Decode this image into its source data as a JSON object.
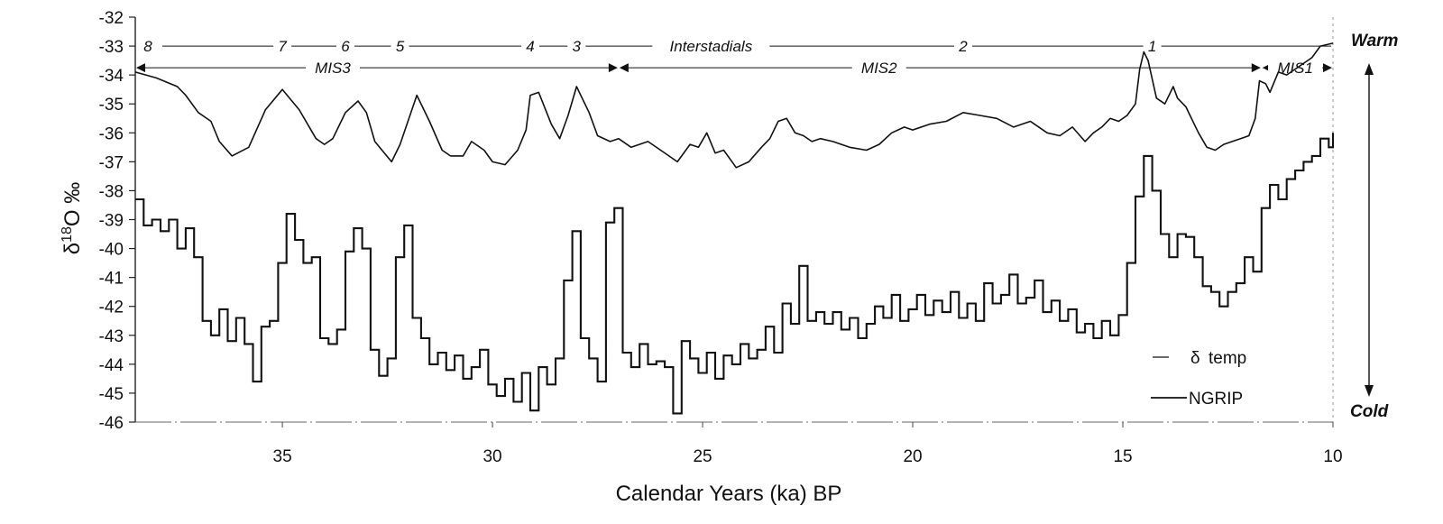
{
  "chart_data": {
    "type": "line",
    "title": "",
    "xlabel": "Calendar Years (ka) BP",
    "ylabel_main": "δ",
    "ylabel_sup": "18",
    "ylabel_tail": "O ‰",
    "xlim": [
      38.5,
      10
    ],
    "ylim": [
      -46,
      -32
    ],
    "x_reversed": true,
    "x_ticks": [
      35,
      30,
      25,
      20,
      15,
      10
    ],
    "x_tick_labels": [
      "35",
      "30",
      "25",
      "20",
      "15",
      "10"
    ],
    "y_ticks": [
      -32,
      -33,
      -34,
      -35,
      -36,
      -37,
      -38,
      -39,
      -40,
      -41,
      -42,
      -43,
      -44,
      -45,
      -46
    ],
    "y_tick_labels": [
      "-32",
      "-33",
      "-34",
      "-35",
      "-36",
      "-37",
      "-38",
      "-39",
      "-40",
      "-41",
      "-42",
      "-43",
      "-44",
      "-45",
      "-46"
    ],
    "grid": false,
    "legend_position": "bottom-right",
    "legend": [
      {
        "symbol": "δ",
        "label": "temp"
      },
      {
        "symbol": "",
        "label": "NGRIP"
      }
    ],
    "side_labels": {
      "top": "Warm",
      "bottom": "Cold"
    },
    "interstadial_labels": [
      {
        "text": "8",
        "x": 38.2
      },
      {
        "text": "7",
        "x": 35.0
      },
      {
        "text": "6",
        "x": 33.5
      },
      {
        "text": "5",
        "x": 32.2
      },
      {
        "text": "4",
        "x": 29.1
      },
      {
        "text": "3",
        "x": 28.0
      },
      {
        "text": "Interstadials",
        "x": 24.8
      },
      {
        "text": "2",
        "x": 18.8
      },
      {
        "text": "1",
        "x": 14.3
      }
    ],
    "interstadial_y": -33,
    "mis_periods": [
      {
        "label": "MIS3",
        "start": 38.5,
        "end": 27.0,
        "label_x": 33.8
      },
      {
        "label": "MIS2",
        "start": 27.0,
        "end": 11.7,
        "label_x": 20.8
      },
      {
        "label": "MIS1",
        "start": 11.7,
        "end": 10.0,
        "label_x": 10.9
      }
    ],
    "mis_y": -33.75,
    "series": [
      {
        "name": "δ temp",
        "x": [
          38.5,
          38.0,
          37.5,
          37.3,
          37.0,
          36.7,
          36.5,
          36.2,
          35.8,
          35.4,
          35.0,
          34.6,
          34.2,
          34.0,
          33.8,
          33.5,
          33.2,
          33.0,
          32.8,
          32.4,
          32.2,
          31.8,
          31.5,
          31.2,
          31.0,
          30.7,
          30.5,
          30.2,
          30.0,
          29.7,
          29.4,
          29.2,
          29.1,
          28.9,
          28.6,
          28.4,
          28.2,
          28.0,
          27.7,
          27.5,
          27.2,
          27.0,
          26.7,
          26.3,
          26.0,
          25.6,
          25.3,
          25.1,
          24.9,
          24.7,
          24.5,
          24.2,
          23.9,
          23.6,
          23.4,
          23.2,
          23.0,
          22.8,
          22.6,
          22.4,
          22.2,
          21.9,
          21.5,
          21.1,
          20.8,
          20.5,
          20.2,
          20.0,
          19.6,
          19.2,
          18.8,
          18.4,
          18.0,
          17.6,
          17.2,
          16.8,
          16.5,
          16.2,
          15.9,
          15.7,
          15.5,
          15.3,
          15.1,
          14.9,
          14.7,
          14.6,
          14.5,
          14.4,
          14.2,
          14.0,
          13.8,
          13.7,
          13.5,
          13.3,
          13.2,
          13.0,
          12.8,
          12.6,
          12.4,
          12.2,
          12.0,
          11.85,
          11.75,
          11.6,
          11.5,
          11.3,
          11.1,
          10.8,
          10.5,
          10.3,
          10.0
        ],
        "values": [
          -33.9,
          -34.1,
          -34.4,
          -34.7,
          -35.3,
          -35.6,
          -36.3,
          -36.8,
          -36.5,
          -35.2,
          -34.5,
          -35.2,
          -36.2,
          -36.4,
          -36.2,
          -35.3,
          -34.9,
          -35.3,
          -36.3,
          -37.0,
          -36.4,
          -34.7,
          -35.6,
          -36.6,
          -36.8,
          -36.8,
          -36.3,
          -36.6,
          -37.0,
          -37.1,
          -36.6,
          -35.9,
          -34.7,
          -34.6,
          -35.7,
          -36.2,
          -35.4,
          -34.4,
          -35.3,
          -36.1,
          -36.3,
          -36.2,
          -36.5,
          -36.3,
          -36.6,
          -37.0,
          -36.4,
          -36.5,
          -36.0,
          -36.7,
          -36.6,
          -37.2,
          -37.0,
          -36.5,
          -36.2,
          -35.6,
          -35.5,
          -36.0,
          -36.1,
          -36.3,
          -36.2,
          -36.3,
          -36.5,
          -36.6,
          -36.4,
          -36.0,
          -35.8,
          -35.9,
          -35.7,
          -35.6,
          -35.3,
          -35.4,
          -35.5,
          -35.8,
          -35.6,
          -36.0,
          -36.1,
          -35.8,
          -36.3,
          -36.0,
          -35.8,
          -35.5,
          -35.6,
          -35.4,
          -35.0,
          -33.8,
          -33.2,
          -33.5,
          -34.8,
          -35.0,
          -34.4,
          -34.8,
          -35.1,
          -35.7,
          -36.0,
          -36.5,
          -36.6,
          -36.4,
          -36.3,
          -36.2,
          -36.1,
          -35.5,
          -34.2,
          -34.3,
          -34.6,
          -33.9,
          -34.0,
          -33.7,
          -33.4,
          -33.0,
          -32.9
        ]
      },
      {
        "name": "NGRIP",
        "x": [
          38.5,
          38.3,
          38.1,
          37.9,
          37.7,
          37.5,
          37.3,
          37.1,
          36.9,
          36.7,
          36.5,
          36.3,
          36.1,
          35.9,
          35.7,
          35.5,
          35.3,
          35.1,
          34.9,
          34.7,
          34.5,
          34.3,
          34.1,
          33.9,
          33.7,
          33.5,
          33.3,
          33.1,
          32.9,
          32.7,
          32.5,
          32.3,
          32.1,
          31.9,
          31.7,
          31.5,
          31.3,
          31.1,
          30.9,
          30.7,
          30.5,
          30.3,
          30.1,
          29.9,
          29.7,
          29.5,
          29.3,
          29.1,
          28.9,
          28.7,
          28.5,
          28.3,
          28.1,
          27.9,
          27.7,
          27.5,
          27.3,
          27.1,
          26.9,
          26.7,
          26.5,
          26.3,
          26.1,
          25.9,
          25.7,
          25.5,
          25.3,
          25.1,
          24.9,
          24.7,
          24.5,
          24.3,
          24.1,
          23.9,
          23.7,
          23.5,
          23.3,
          23.1,
          22.9,
          22.7,
          22.5,
          22.3,
          22.1,
          21.9,
          21.7,
          21.5,
          21.3,
          21.1,
          20.9,
          20.7,
          20.5,
          20.3,
          20.1,
          19.9,
          19.7,
          19.5,
          19.3,
          19.1,
          18.9,
          18.7,
          18.5,
          18.3,
          18.1,
          17.9,
          17.7,
          17.5,
          17.3,
          17.1,
          16.9,
          16.7,
          16.5,
          16.3,
          16.1,
          15.9,
          15.7,
          15.5,
          15.3,
          15.1,
          14.9,
          14.7,
          14.5,
          14.3,
          14.1,
          13.9,
          13.7,
          13.5,
          13.3,
          13.1,
          12.9,
          12.7,
          12.5,
          12.3,
          12.1,
          11.9,
          11.7,
          11.5,
          11.3,
          11.1,
          10.9,
          10.7,
          10.5,
          10.3,
          10.1,
          10.0
        ],
        "values": [
          -38.3,
          -39.2,
          -39.0,
          -39.4,
          -39.0,
          -40.0,
          -39.3,
          -40.3,
          -42.5,
          -43.0,
          -42.1,
          -43.2,
          -42.4,
          -43.3,
          -44.6,
          -42.7,
          -42.5,
          -40.5,
          -38.8,
          -39.7,
          -40.5,
          -40.3,
          -43.1,
          -43.3,
          -42.8,
          -40.1,
          -39.3,
          -40.0,
          -43.5,
          -44.4,
          -43.8,
          -40.3,
          -39.2,
          -42.4,
          -43.1,
          -44.0,
          -43.6,
          -44.2,
          -43.7,
          -44.5,
          -44.1,
          -43.5,
          -44.7,
          -45.1,
          -44.5,
          -45.3,
          -44.3,
          -45.6,
          -44.1,
          -44.7,
          -43.8,
          -41.1,
          -39.4,
          -43.1,
          -43.8,
          -44.6,
          -39.1,
          -38.6,
          -43.6,
          -44.1,
          -43.3,
          -44.0,
          -43.9,
          -44.1,
          -45.7,
          -43.2,
          -43.8,
          -44.3,
          -43.6,
          -44.5,
          -43.7,
          -44.0,
          -43.3,
          -43.8,
          -43.5,
          -42.7,
          -43.6,
          -41.9,
          -42.6,
          -40.6,
          -42.5,
          -42.2,
          -42.6,
          -42.2,
          -42.8,
          -42.4,
          -43.1,
          -42.6,
          -42.0,
          -42.4,
          -41.6,
          -42.5,
          -42.1,
          -41.6,
          -42.3,
          -41.8,
          -42.2,
          -41.5,
          -42.4,
          -41.9,
          -42.5,
          -41.2,
          -41.9,
          -41.6,
          -40.9,
          -41.9,
          -41.7,
          -41.1,
          -42.2,
          -41.8,
          -42.5,
          -42.1,
          -42.9,
          -42.6,
          -43.1,
          -42.5,
          -43.0,
          -42.3,
          -40.5,
          -38.2,
          -36.8,
          -38.0,
          -39.5,
          -40.3,
          -39.5,
          -39.6,
          -40.3,
          -41.3,
          -41.5,
          -42.0,
          -41.5,
          -41.2,
          -40.3,
          -40.8,
          -38.6,
          -37.8,
          -38.3,
          -37.6,
          -37.3,
          -37.0,
          -36.8,
          -36.2,
          -36.5,
          -36.0
        ]
      }
    ]
  }
}
